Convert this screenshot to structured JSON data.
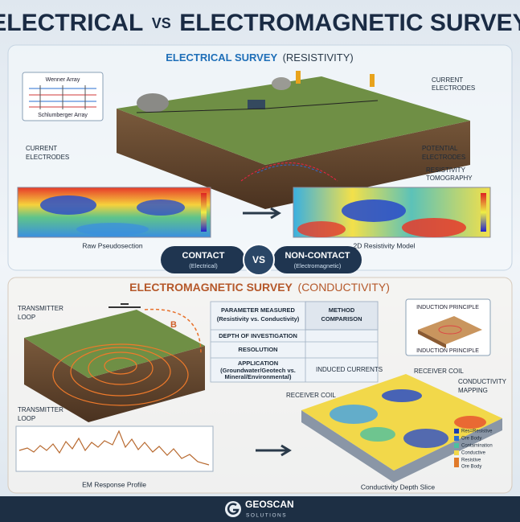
{
  "header": {
    "title_left": "ELECTRICAL",
    "title_vs": "VS",
    "title_right": "ELECTROMAGNETIC SURVEY"
  },
  "electrical": {
    "title": "ELECTRICAL SURVEY",
    "subtitle": "(RESISTIVITY)",
    "array_inset": [
      "Wenner Array",
      "Schlumberger Array"
    ],
    "callouts": [
      [
        "CURRENT",
        "ELECTRODES"
      ],
      [
        "CURRENT",
        "ELECTRODES"
      ],
      [
        "POTENTIAL",
        "ELECTRODES"
      ],
      [
        "RESISTIVITY",
        "TOMOGRAPHY"
      ]
    ],
    "panels": [
      "Raw Pseudosection",
      "2D Resistivity Model"
    ]
  },
  "comparison": {
    "left": {
      "label": "CONTACT",
      "sub": "(Electrical)"
    },
    "vs": "VS",
    "right": {
      "label": "NON-CONTACT",
      "sub": "(Electromagnetic)"
    }
  },
  "electromagnetic": {
    "title": "ELECTROMAGNETIC SURVEY",
    "subtitle": "(CONDUCTIVITY)",
    "callouts": [
      [
        "TRANSMITTER",
        "LOOP"
      ],
      [
        "TRANSMITTER",
        "LOOP"
      ],
      [
        "INDUCED CURRENTS"
      ],
      [
        "RECEIVER COIL"
      ],
      [
        "CONDUCTIVITY",
        "MAPPING"
      ],
      [
        "RECEIVER COIL"
      ]
    ],
    "field_label": "B",
    "table": {
      "rows": [
        [
          "PARAMETER MEASURED",
          "(Resistivity vs. Conductivity)"
        ],
        [
          "DEPTH OF INVESTIGATION"
        ],
        [
          "RESOLUTION"
        ],
        [
          "APPLICATION",
          "(Groundwater/Geotech vs.",
          "Mineral/Environmental)"
        ]
      ],
      "column_header": [
        "METHOD",
        "COMPARISON"
      ]
    },
    "inset": [
      "INDUCTION PRINCIPLE",
      "INDUCTION PRINCIPLE"
    ],
    "legend": [
      [
        "Res=Resistive"
      ],
      [
        "Ore Body"
      ],
      [
        "Contamination"
      ],
      [
        "Conductive"
      ],
      [
        "Resistive",
        "Ore Body"
      ]
    ],
    "panels": [
      "EM Response Profile",
      "Conductivity Depth Slice"
    ]
  },
  "footer": {
    "brand": "GEOSCAN",
    "tagline": "SOLUTIONS"
  }
}
